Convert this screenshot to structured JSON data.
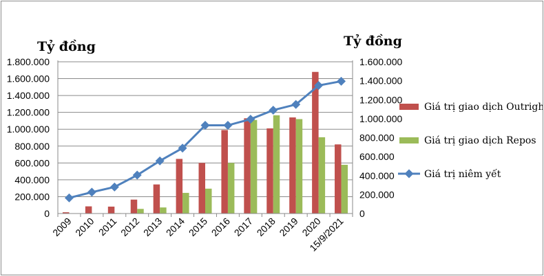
{
  "chart_data": {
    "type": "bar",
    "left_axis_unit": "Tỷ đồng",
    "right_axis_unit": "Tỷ đồng",
    "categories": [
      "2009",
      "2010",
      "2011",
      "2012",
      "2013",
      "2014",
      "2015",
      "2016",
      "2017",
      "2018",
      "2019",
      "2020",
      "15/9/2021"
    ],
    "left_ylim": [
      0,
      1800000
    ],
    "right_ylim": [
      0,
      1600000
    ],
    "left_ticks": [
      "0",
      "200.000",
      "400.000",
      "600.000",
      "800.000",
      "1.000.000",
      "1.200.000",
      "1.400.000",
      "1.600.000",
      "1.800.000"
    ],
    "right_ticks": [
      "0",
      "200.000",
      "400.000",
      "600.000",
      "800.000",
      "1.000.000",
      "1.200.000",
      "1.400.000",
      "1.600.000"
    ],
    "series": [
      {
        "name": "Giá trị giao dịch Outright",
        "type": "bar",
        "axis": "left",
        "color": "#c0504d",
        "values": [
          15000,
          85000,
          82000,
          165000,
          345000,
          648000,
          600000,
          990000,
          1130000,
          1010000,
          1140000,
          1680000,
          820000
        ]
      },
      {
        "name": "Giá trị giao dịch Repos",
        "type": "bar",
        "axis": "left",
        "color": "#9bbb59",
        "values": [
          0,
          3000,
          5000,
          55000,
          72000,
          245000,
          295000,
          600000,
          1110000,
          1165000,
          1120000,
          905000,
          578000
        ]
      },
      {
        "name": "Giá trị niêm yết",
        "type": "line",
        "axis": "right",
        "color": "#4f81bd",
        "values": [
          165000,
          225000,
          280000,
          405000,
          555000,
          690000,
          930000,
          930000,
          995000,
          1090000,
          1150000,
          1350000,
          1395000
        ]
      }
    ],
    "grid": true,
    "legend_position": "right"
  }
}
